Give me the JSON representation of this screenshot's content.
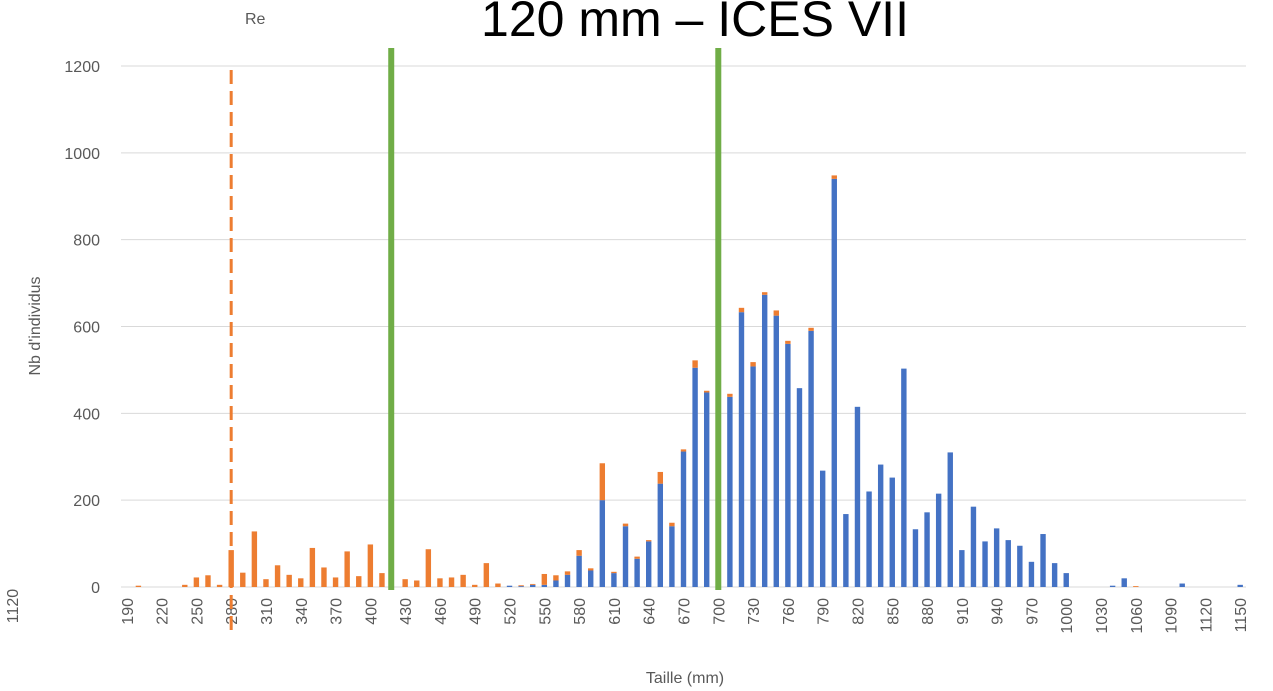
{
  "chart_data": {
    "type": "bar",
    "stacked": true,
    "title": "120 mm – ICES VII",
    "corner_text": "Re",
    "side_label": "1120",
    "x_label": "Taille (mm)",
    "y_label": "Nb d'individus",
    "categories": [
      190,
      null,
      null,
      220,
      null,
      null,
      250,
      null,
      null,
      280,
      null,
      null,
      310,
      null,
      null,
      340,
      null,
      null,
      370,
      null,
      null,
      400,
      null,
      null,
      430,
      null,
      null,
      460,
      null,
      null,
      490,
      null,
      null,
      520,
      null,
      null,
      550,
      null,
      null,
      580,
      null,
      null,
      610,
      null,
      null,
      640,
      null,
      null,
      670,
      null,
      null,
      700,
      null,
      null,
      730,
      null,
      null,
      760,
      null,
      null,
      790,
      null,
      null,
      820,
      null,
      null,
      850,
      null,
      null,
      880,
      null,
      null,
      910,
      null,
      null,
      940,
      null,
      null,
      970,
      null,
      null,
      1000,
      null,
      null,
      1030,
      null,
      null,
      1060,
      null,
      null,
      1090,
      null,
      null,
      1120,
      null,
      null,
      1150
    ],
    "series": [
      {
        "color": "#4472c4",
        "values": [
          0,
          0,
          0,
          0,
          0,
          0,
          0,
          0,
          0,
          0,
          0,
          0,
          0,
          0,
          0,
          0,
          0,
          0,
          0,
          0,
          0,
          0,
          0,
          0,
          0,
          0,
          0,
          0,
          0,
          0,
          0,
          0,
          0,
          3,
          2,
          5,
          5,
          15,
          28,
          72,
          38,
          200,
          32,
          140,
          65,
          105,
          238,
          140,
          312,
          505,
          448,
          0,
          438,
          633,
          508,
          673,
          625,
          560,
          458,
          590,
          268,
          940,
          168,
          415,
          220,
          282,
          252,
          503,
          133,
          172,
          215,
          310,
          85,
          185,
          105,
          135,
          108,
          95,
          58,
          122,
          55,
          32,
          0,
          0,
          0,
          3,
          20,
          0,
          0,
          0,
          0,
          8,
          0,
          0,
          0,
          0,
          5
        ]
      },
      {
        "color": "#ed7d31",
        "values": [
          0,
          3,
          0,
          0,
          0,
          5,
          22,
          27,
          5,
          85,
          33,
          128,
          18,
          50,
          28,
          20,
          90,
          45,
          22,
          82,
          25,
          98,
          32,
          0,
          18,
          15,
          87,
          20,
          22,
          28,
          5,
          55,
          8,
          0,
          2,
          2,
          25,
          12,
          8,
          13,
          5,
          85,
          3,
          6,
          5,
          3,
          27,
          8,
          5,
          17,
          4,
          0,
          7,
          10,
          10,
          6,
          12,
          7,
          0,
          7,
          0,
          8,
          0,
          0,
          0,
          0,
          0,
          0,
          0,
          0,
          0,
          0,
          0,
          0,
          0,
          0,
          0,
          0,
          0,
          0,
          0,
          0,
          0,
          0,
          0,
          0,
          0,
          2,
          0,
          0,
          0,
          0,
          0,
          0,
          0,
          0,
          0
        ]
      }
    ],
    "vlines": [
      {
        "x": 280,
        "color": "#ed7d31",
        "dashed": true
      },
      {
        "x": 418,
        "color": "#70ad47",
        "dashed": false
      },
      {
        "x": 700,
        "color": "#70ad47",
        "dashed": false
      }
    ],
    "ylim": [
      0,
      1200
    ],
    "yticks": [
      0,
      200,
      400,
      600,
      800,
      1000,
      1200
    ],
    "grid": true
  }
}
